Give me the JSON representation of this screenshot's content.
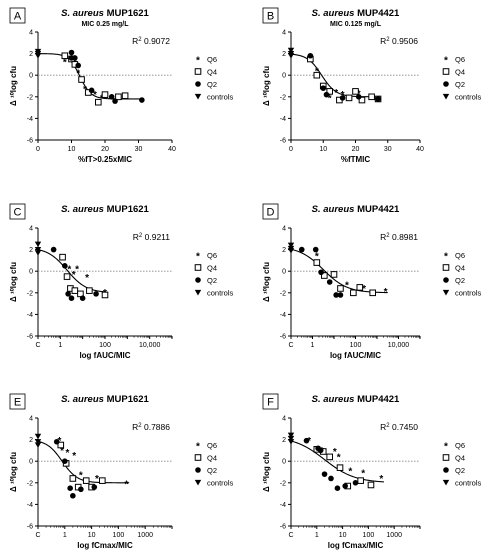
{
  "legend_labels": [
    "Q6",
    "Q4",
    "Q2",
    "controls"
  ],
  "panels": [
    {
      "letter": "A",
      "title_italic": "S. aureus",
      "title_rest": " MUP1621",
      "subtitle": "MIC 0.25 mg/L",
      "r2_label": "R",
      "r2_value": "0.9072",
      "ylabel": "Δ ¹⁰log cfu",
      "xlabel": "%fT>0.25xMIC"
    },
    {
      "letter": "B",
      "title_italic": "S. aureus",
      "title_rest": " MUP4421",
      "subtitle": "MIC 0.125 mg/L",
      "r2_label": "R",
      "r2_value": "0.9506",
      "ylabel": "Δ ¹⁰log cfu",
      "xlabel": "%fTMIC"
    },
    {
      "letter": "C",
      "title_italic": "S. aureus",
      "title_rest": " MUP1621",
      "subtitle": "",
      "r2_label": "R",
      "r2_value": "0.9211",
      "ylabel": "Δ ¹⁰log cfu",
      "xlabel": "log fAUC/MIC"
    },
    {
      "letter": "D",
      "title_italic": "S. aureus",
      "title_rest": " MUP4421",
      "subtitle": "",
      "r2_label": "R",
      "r2_value": "0.8981",
      "ylabel": "Δ ¹⁰log cfu",
      "xlabel": "log fAUC/MIC"
    },
    {
      "letter": "E",
      "title_italic": "S. aureus",
      "title_rest": " MUP1621",
      "subtitle": "",
      "r2_label": "R",
      "r2_value": "0.7886",
      "ylabel": "Δ ¹⁰log cfu",
      "xlabel": "log fCmax/MIC"
    },
    {
      "letter": "F",
      "title_italic": "S. aureus",
      "title_rest": " MUP4421",
      "subtitle": "",
      "r2_label": "R",
      "r2_value": "0.7450",
      "ylabel": "Δ ¹⁰log cfu",
      "xlabel": "log fCmax/MIC"
    }
  ],
  "chart_data": [
    {
      "panel": "A",
      "type": "scatter",
      "xscale": "linear",
      "xlim": [
        0,
        40
      ],
      "ylim": [
        -6,
        4
      ],
      "xticks": [
        "0",
        "10",
        "20",
        "30",
        "40"
      ],
      "yticks": [
        "-6",
        "-4",
        "-2",
        "0",
        "2",
        "4"
      ],
      "reference_line_y": 0,
      "fit": {
        "top": 2.0,
        "bottom": -2.2,
        "mid": 12.5,
        "slope": 0.6
      },
      "series": [
        {
          "name": "Q6",
          "marker": "star",
          "points": [
            [
              8,
              1.3
            ],
            [
              11,
              1.2
            ],
            [
              12,
              0.3
            ],
            [
              14,
              -1.2
            ],
            [
              17,
              -1.7
            ],
            [
              19,
              -2.0
            ]
          ]
        },
        {
          "name": "Q4",
          "marker": "square-open",
          "points": [
            [
              8,
              1.8
            ],
            [
              10,
              1.5
            ],
            [
              11,
              1.0
            ],
            [
              13,
              -0.4
            ],
            [
              15,
              -1.6
            ],
            [
              18,
              -2.5
            ],
            [
              20,
              -1.8
            ],
            [
              24,
              -2.0
            ],
            [
              26,
              -1.9
            ]
          ]
        },
        {
          "name": "Q2",
          "marker": "circle",
          "points": [
            [
              10,
              2.1
            ],
            [
              10,
              1.6
            ],
            [
              11,
              1.6
            ],
            [
              12,
              0.9
            ],
            [
              16,
              -1.4
            ],
            [
              22,
              -2.0
            ],
            [
              23,
              -2.4
            ],
            [
              31,
              -2.3
            ]
          ]
        },
        {
          "name": "controls",
          "marker": "triangle-down",
          "points": [
            [
              0,
              2.2
            ],
            [
              0,
              2.0
            ],
            [
              0,
              1.8
            ]
          ]
        }
      ]
    },
    {
      "panel": "B",
      "type": "scatter",
      "xscale": "linear",
      "xlim": [
        0,
        40
      ],
      "ylim": [
        -6,
        4
      ],
      "xticks": [
        "0",
        "10",
        "20",
        "30",
        "40"
      ],
      "yticks": [
        "-6",
        "-4",
        "-2",
        "0",
        "2",
        "4"
      ],
      "reference_line_y": 0,
      "fit": {
        "top": 2.0,
        "bottom": -2.0,
        "mid": 9.5,
        "slope": 0.45
      },
      "series": [
        {
          "name": "Q6",
          "marker": "star",
          "points": [
            [
              8,
              0.5
            ],
            [
              10,
              -1.0
            ],
            [
              12,
              -2.0
            ],
            [
              14,
              -1.5
            ],
            [
              16,
              -1.7
            ],
            [
              21,
              -1.6
            ]
          ]
        },
        {
          "name": "Q4",
          "marker": "square-open",
          "points": [
            [
              6,
              1.5
            ],
            [
              8,
              0.0
            ],
            [
              10,
              -1.0
            ],
            [
              12,
              -1.5
            ],
            [
              15,
              -2.3
            ],
            [
              18,
              -2.1
            ],
            [
              20,
              -1.5
            ],
            [
              22,
              -2.3
            ],
            [
              25,
              -2.0
            ],
            [
              27,
              -2.2
            ]
          ]
        },
        {
          "name": "Q2",
          "marker": "circle",
          "points": [
            [
              6,
              1.8
            ],
            [
              10,
              -1.2
            ],
            [
              11,
              -1.8
            ],
            [
              16,
              -2.1
            ],
            [
              21,
              -2.0
            ],
            [
              27,
              -2.2
            ]
          ]
        },
        {
          "name": "controls",
          "marker": "triangle-down",
          "points": [
            [
              0,
              2.0
            ],
            [
              0,
              2.3
            ],
            [
              0,
              1.8
            ]
          ]
        }
      ]
    },
    {
      "panel": "C",
      "type": "scatter",
      "xscale": "log",
      "xlim_exp": [
        -1,
        5
      ],
      "ylim": [
        -6,
        4
      ],
      "xticks": [
        {
          "label": "C",
          "exp": -1
        },
        {
          "label": "1",
          "exp": 0
        },
        {
          "label": "100",
          "exp": 2
        },
        {
          "label": "10,000",
          "exp": 4
        }
      ],
      "yticks": [
        "-6",
        "-4",
        "-2",
        "0",
        "2",
        "4"
      ],
      "reference_line_y": 0,
      "fit": {
        "top": 2.2,
        "bottom": -2.0,
        "mid": 0.3,
        "slope": 2.3
      },
      "series": [
        {
          "name": "Q6",
          "marker": "star",
          "points": [
            [
              0.4,
              0.3
            ],
            [
              0.6,
              -0.2
            ],
            [
              0.75,
              0.3
            ],
            [
              1.2,
              -0.5
            ],
            [
              2.0,
              -1.9
            ]
          ]
        },
        {
          "name": "Q4",
          "marker": "square-open",
          "points": [
            [
              0.1,
              1.3
            ],
            [
              0.3,
              -0.5
            ],
            [
              0.45,
              -1.6
            ],
            [
              0.65,
              -1.8
            ],
            [
              0.9,
              -2.1
            ],
            [
              1.3,
              -1.8
            ],
            [
              2.0,
              -2.2
            ]
          ]
        },
        {
          "name": "Q2",
          "marker": "circle",
          "points": [
            [
              -0.3,
              2.0
            ],
            [
              0.2,
              0.5
            ],
            [
              0.35,
              -2.1
            ],
            [
              0.5,
              -2.5
            ],
            [
              1.0,
              -2.5
            ],
            [
              1.6,
              -2.1
            ]
          ]
        },
        {
          "name": "controls",
          "marker": "triangle-down",
          "points": [
            [
              -1,
              2.5
            ],
            [
              -1,
              2.0
            ],
            [
              -1,
              1.7
            ]
          ]
        }
      ]
    },
    {
      "panel": "D",
      "type": "scatter",
      "xscale": "log",
      "xlim_exp": [
        -1,
        5
      ],
      "ylim": [
        -6,
        4
      ],
      "xticks": [
        {
          "label": "C",
          "exp": -1
        },
        {
          "label": "1",
          "exp": 0
        },
        {
          "label": "100",
          "exp": 2
        },
        {
          "label": "10,000",
          "exp": 4
        }
      ],
      "yticks": [
        "-6",
        "-4",
        "-2",
        "0",
        "2",
        "4"
      ],
      "reference_line_y": 0,
      "fit": {
        "top": 2.3,
        "bottom": -2.0,
        "mid": 0.5,
        "slope": 1.8
      },
      "series": [
        {
          "name": "Q6",
          "marker": "star",
          "points": [
            [
              0.2,
              1.5
            ],
            [
              0.6,
              -0.2
            ],
            [
              1.6,
              -1.2
            ],
            [
              2.4,
              -1.5
            ],
            [
              3.4,
              -1.8
            ]
          ]
        },
        {
          "name": "Q4",
          "marker": "square-open",
          "points": [
            [
              0.2,
              0.8
            ],
            [
              0.55,
              -0.4
            ],
            [
              1.0,
              -0.3
            ],
            [
              1.3,
              -1.6
            ],
            [
              1.9,
              -2.0
            ],
            [
              2.2,
              -1.5
            ],
            [
              2.8,
              -2.0
            ]
          ]
        },
        {
          "name": "Q2",
          "marker": "circle",
          "points": [
            [
              -0.5,
              2.0
            ],
            [
              0.15,
              2.0
            ],
            [
              0.4,
              -0.1
            ],
            [
              0.8,
              -1.0
            ],
            [
              1.1,
              -2.2
            ],
            [
              1.3,
              -2.2
            ]
          ]
        },
        {
          "name": "controls",
          "marker": "triangle-down",
          "points": [
            [
              -1,
              2.4
            ],
            [
              -1,
              2.1
            ],
            [
              -1,
              1.9
            ]
          ]
        }
      ]
    },
    {
      "panel": "E",
      "type": "scatter",
      "xscale": "log",
      "xlim_exp": [
        -1,
        4
      ],
      "ylim": [
        -6,
        4
      ],
      "xticks": [
        {
          "label": "C",
          "exp": -1
        },
        {
          "label": "1",
          "exp": 0
        },
        {
          "label": "10",
          "exp": 1
        },
        {
          "label": "100",
          "exp": 2
        },
        {
          "label": "1000",
          "exp": 3
        }
      ],
      "yticks": [
        "-6",
        "-4",
        "-2",
        "0",
        "2",
        "4"
      ],
      "reference_line_y": 0,
      "fit": {
        "top": 2.0,
        "bottom": -2.0,
        "mid": -0.1,
        "slope": 3.5
      },
      "series": [
        {
          "name": "Q6",
          "marker": "star",
          "points": [
            [
              -0.2,
              2.0
            ],
            [
              -0.1,
              1.1
            ],
            [
              0.1,
              0.9
            ],
            [
              0.35,
              0.6
            ],
            [
              0.6,
              -1.2
            ],
            [
              1.2,
              -1.5
            ],
            [
              2.3,
              -2.0
            ]
          ]
        },
        {
          "name": "Q4",
          "marker": "square-open",
          "points": [
            [
              -0.15,
              1.5
            ],
            [
              0.05,
              -0.2
            ],
            [
              0.3,
              -1.6
            ],
            [
              0.5,
              -2.4
            ],
            [
              0.8,
              -1.8
            ],
            [
              1.0,
              -2.4
            ],
            [
              1.4,
              -1.8
            ]
          ]
        },
        {
          "name": "Q2",
          "marker": "circle",
          "points": [
            [
              -0.3,
              1.8
            ],
            [
              0.0,
              0.0
            ],
            [
              0.2,
              -2.5
            ],
            [
              0.3,
              -3.2
            ],
            [
              0.6,
              -2.6
            ],
            [
              1.1,
              -2.4
            ]
          ]
        },
        {
          "name": "controls",
          "marker": "triangle-down",
          "points": [
            [
              -1,
              2.3
            ],
            [
              -1,
              1.8
            ],
            [
              -1,
              1.5
            ]
          ]
        }
      ]
    },
    {
      "panel": "F",
      "type": "scatter",
      "xscale": "log",
      "xlim_exp": [
        -1,
        4
      ],
      "ylim": [
        -6,
        4
      ],
      "xticks": [
        {
          "label": "C",
          "exp": -1
        },
        {
          "label": "1",
          "exp": 0
        },
        {
          "label": "10",
          "exp": 1
        },
        {
          "label": "100",
          "exp": 2
        },
        {
          "label": "1000",
          "exp": 3
        }
      ],
      "yticks": [
        "-6",
        "-4",
        "-2",
        "0",
        "2",
        "4"
      ],
      "reference_line_y": 0,
      "fit": {
        "top": 2.3,
        "bottom": -2.0,
        "mid": 0.3,
        "slope": 1.7
      },
      "series": [
        {
          "name": "Q6",
          "marker": "star",
          "points": [
            [
              -0.3,
              2.0
            ],
            [
              0.2,
              1.1
            ],
            [
              0.7,
              1.0
            ],
            [
              0.85,
              0.5
            ],
            [
              1.3,
              -0.8
            ],
            [
              1.8,
              -1.0
            ],
            [
              2.5,
              -1.5
            ]
          ]
        },
        {
          "name": "Q4",
          "marker": "square-open",
          "points": [
            [
              0.0,
              1.1
            ],
            [
              0.25,
              0.9
            ],
            [
              0.5,
              0.4
            ],
            [
              0.9,
              -0.6
            ],
            [
              1.2,
              -2.3
            ],
            [
              1.7,
              -1.8
            ],
            [
              2.1,
              -2.2
            ]
          ]
        },
        {
          "name": "Q2",
          "marker": "circle",
          "points": [
            [
              -0.4,
              1.9
            ],
            [
              0.05,
              1.2
            ],
            [
              0.15,
              1.0
            ],
            [
              0.3,
              -1.2
            ],
            [
              0.55,
              -1.6
            ],
            [
              0.8,
              -2.5
            ],
            [
              1.1,
              -2.3
            ],
            [
              1.5,
              -2.0
            ]
          ]
        },
        {
          "name": "controls",
          "marker": "triangle-down",
          "points": [
            [
              -1,
              2.4
            ],
            [
              -1,
              2.1
            ],
            [
              -1,
              1.8
            ]
          ]
        }
      ]
    }
  ]
}
